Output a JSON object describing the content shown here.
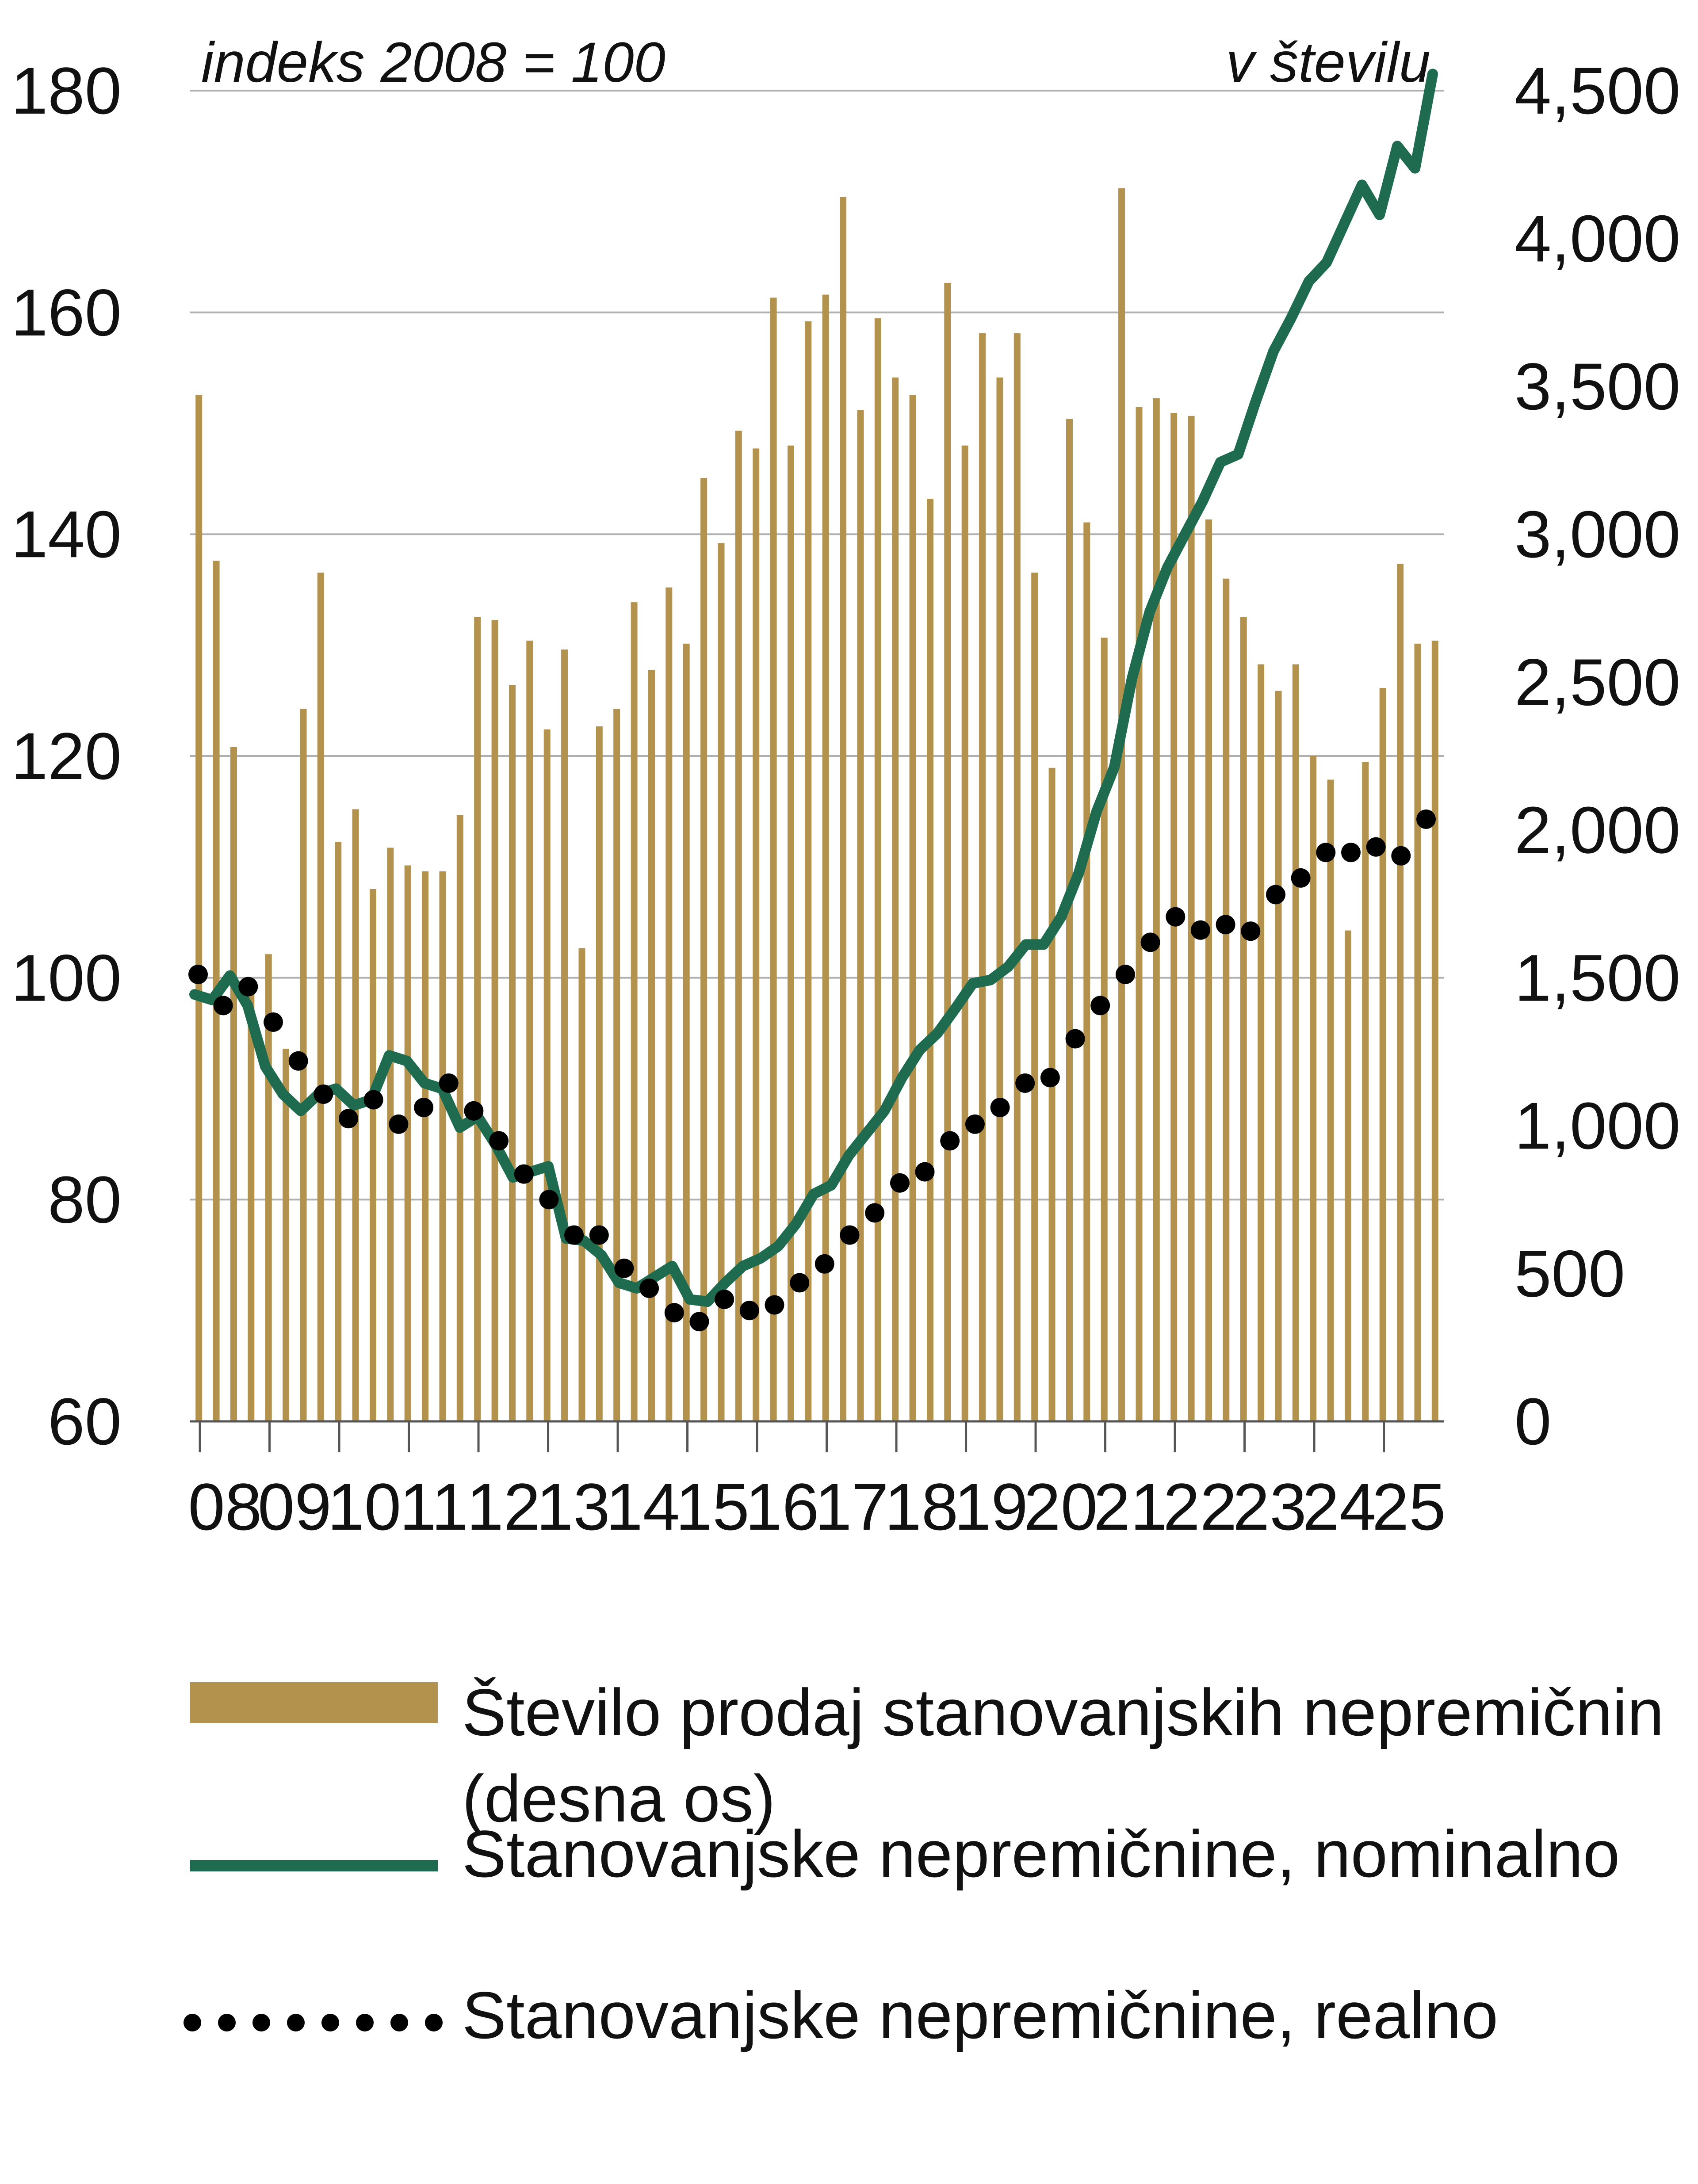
{
  "chart_data": {
    "type": "bar+line",
    "title": "",
    "left_axis": {
      "unit_label": "indeks 2008 = 100",
      "range": [
        60,
        180
      ],
      "ticks": [
        "60",
        "80",
        "100",
        "120",
        "140",
        "160",
        "180"
      ]
    },
    "right_axis": {
      "unit_label": "v številu",
      "range": [
        0,
        4500
      ],
      "ticks": [
        "0",
        "500",
        "1,000",
        "1,500",
        "2,000",
        "2,500",
        "3,000",
        "3,500",
        "4,000",
        "4,500"
      ]
    },
    "x_labels": [
      "08",
      "09",
      "10",
      "11",
      "12",
      "13",
      "14",
      "15",
      "16",
      "17",
      "18",
      "19",
      "20",
      "21",
      "22",
      "23",
      "24",
      "25"
    ],
    "grid": true,
    "legend_placement": "bottom",
    "colors": {
      "bars": "#b3924e",
      "nominal": "#1f6b4f",
      "real": "#000000",
      "grid": "#b0b0b0"
    },
    "series": [
      {
        "name": "Število prodaj stanovanjskih nepremičnin (desna os)",
        "legend_lines": [
          "Število prodaj stanovanjskih nepremičnin",
          "(desna os)"
        ],
        "type": "bar",
        "axis": "right",
        "values": [
          3470,
          2910,
          2280,
          1490,
          1580,
          1260,
          2410,
          2870,
          1960,
          2070,
          1800,
          1940,
          1880,
          1860,
          1860,
          2050,
          2720,
          2710,
          2490,
          2640,
          2340,
          2610,
          1600,
          2350,
          2410,
          2770,
          2540,
          2820,
          2630,
          3190,
          2970,
          3350,
          3290,
          3800,
          3300,
          3720,
          3810,
          4140,
          3420,
          3730,
          3530,
          3470,
          3120,
          3850,
          3300,
          3680,
          3530,
          3680,
          2870,
          2210,
          3390,
          3040,
          2650,
          4170,
          3430,
          3460,
          3410,
          3400,
          3050,
          2850,
          2720,
          2560,
          2470,
          2560,
          2250,
          2170,
          1660,
          2230,
          2480,
          2900,
          2630,
          2640
        ]
      },
      {
        "name": "Stanovanjske nepremičnine, nominalno",
        "type": "line",
        "axis": "left",
        "values": [
          98.5,
          98,
          100.2,
          97.5,
          92,
          89.5,
          88,
          89.5,
          90,
          88.5,
          89,
          93,
          92.5,
          90.5,
          90,
          86.5,
          87.5,
          85,
          82,
          82.5,
          83,
          76.5,
          76.3,
          75,
          72.5,
          72,
          73,
          74,
          71,
          70.8,
          72.5,
          74,
          74.7,
          75.8,
          77.8,
          80.5,
          81.3,
          84,
          86,
          88,
          91,
          93.5,
          95,
          97.2,
          99.5,
          99.8,
          101,
          103,
          103,
          105.5,
          109.5,
          115,
          119,
          127,
          133,
          137,
          140,
          143,
          146.5,
          147.2,
          152,
          156.5,
          159.5,
          162.8,
          164.5,
          168,
          171.5,
          168.8,
          175,
          173,
          181.5
        ]
      },
      {
        "name": "Stanovanjske nepremičnine, realno",
        "type": "dots",
        "axis": "left",
        "values": [
          100.3,
          97.5,
          99.2,
          96,
          92.5,
          89.5,
          87.3,
          89,
          86.8,
          88.3,
          90.5,
          88,
          85.3,
          82.3,
          80,
          76.8,
          76.8,
          73.8,
          72,
          69.8,
          69,
          71,
          70,
          70.5,
          72.5,
          74.2,
          76.8,
          78.8,
          81.5,
          82.5,
          85.3,
          86.8,
          88.3,
          90.5,
          91,
          94.5,
          97.5,
          100.3,
          103.2,
          105.5,
          104.3,
          104.8,
          104.2,
          107.5,
          109,
          111.3,
          111.3,
          111.8,
          111,
          114.3
        ]
      }
    ]
  }
}
